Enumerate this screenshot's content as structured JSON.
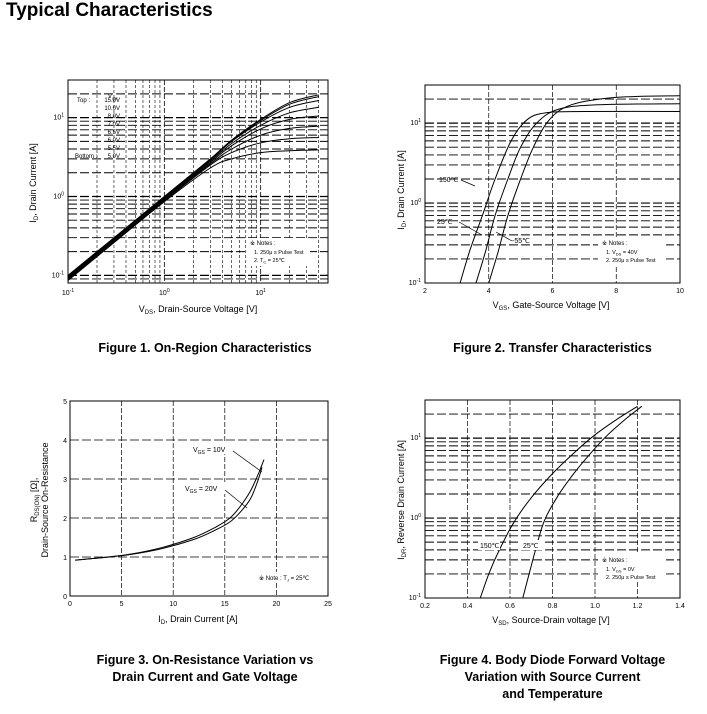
{
  "page_title": "Typical Characteristics",
  "chart_data": [
    {
      "type": "line",
      "id": "fig1",
      "scale": "log-log",
      "caption": "Figure 1. On-Region Characteristics",
      "xlabel": "V_DS, Drain-Source Voltage [V]",
      "xlabel_main": "V",
      "xlabel_sub": "DS",
      "xlabel_rest": ", Drain-Source Voltage [V]",
      "ylabel": "I_D, Drain Current [A]",
      "ylabel_main": "I",
      "ylabel_sub": "D",
      "ylabel_rest": ", Drain Current [A]",
      "xlim": [
        0.1,
        50
      ],
      "ylim": [
        0.08,
        30
      ],
      "x_ticks": [
        {
          "v": 0.1,
          "base": "10",
          "exp": "-1"
        },
        {
          "v": 1,
          "base": "10",
          "exp": "0"
        },
        {
          "v": 10,
          "base": "10",
          "exp": "1"
        }
      ],
      "y_ticks": [
        {
          "v": 0.1,
          "base": "10",
          "exp": "-1"
        },
        {
          "v": 1,
          "base": "10",
          "exp": "0"
        },
        {
          "v": 10,
          "base": "10",
          "exp": "1"
        }
      ],
      "legend_header": "V",
      "legend_header_sub": "GS",
      "legend_top_label": "Top :",
      "legend_bottom_label": "Bottom :",
      "legend_items": [
        "15.0V",
        "10.0V",
        "8.0V",
        "7.0V",
        "6.5V",
        "6.0V",
        "5.5V",
        "5.0V"
      ],
      "notes": [
        "※ Notes :",
        "1. 250μ s Pulse Test",
        "2. T = 25℃"
      ],
      "note_sub": "C",
      "series": [
        {
          "name": "15.0V",
          "x": [
            0.1,
            0.3,
            1,
            3,
            5,
            10,
            20,
            40
          ],
          "y": [
            0.1,
            0.3,
            1,
            3,
            5.2,
            9.5,
            15.5,
            19.5
          ]
        },
        {
          "name": "10.0V",
          "x": [
            0.1,
            0.3,
            1,
            3,
            5,
            10,
            20,
            40
          ],
          "y": [
            0.098,
            0.295,
            0.98,
            2.95,
            5.1,
            9.2,
            14.8,
            18.5
          ]
        },
        {
          "name": "8.0V",
          "x": [
            0.1,
            0.3,
            1,
            3,
            5,
            10,
            20,
            40
          ],
          "y": [
            0.096,
            0.29,
            0.96,
            2.9,
            5.0,
            8.8,
            13.5,
            16.5
          ]
        },
        {
          "name": "7.0V",
          "x": [
            0.1,
            0.3,
            1,
            3,
            5,
            10,
            20,
            40
          ],
          "y": [
            0.094,
            0.285,
            0.94,
            2.8,
            4.7,
            8.0,
            11.5,
            13.5
          ]
        },
        {
          "name": "6.5V",
          "x": [
            0.1,
            0.3,
            1,
            3,
            5,
            10,
            20,
            40
          ],
          "y": [
            0.092,
            0.28,
            0.92,
            2.7,
            4.4,
            7.2,
            9.5,
            10.5
          ]
        },
        {
          "name": "6.0V",
          "x": [
            0.1,
            0.3,
            1,
            3,
            5,
            10,
            20,
            40
          ],
          "y": [
            0.09,
            0.27,
            0.9,
            2.6,
            4.0,
            6.0,
            7.3,
            7.8
          ]
        },
        {
          "name": "5.5V",
          "x": [
            0.1,
            0.3,
            1,
            3,
            5,
            10,
            20,
            40
          ],
          "y": [
            0.088,
            0.265,
            0.88,
            2.5,
            3.6,
            4.8,
            5.4,
            5.6
          ]
        },
        {
          "name": "5.0V",
          "x": [
            0.1,
            0.3,
            1,
            3,
            5,
            10,
            20,
            40
          ],
          "y": [
            0.086,
            0.26,
            0.86,
            2.3,
            3.0,
            3.6,
            3.8,
            3.9
          ]
        }
      ]
    },
    {
      "type": "line",
      "id": "fig2",
      "scale": "lin-log",
      "caption": "Figure 2. Transfer Characteristics",
      "xlabel_main": "V",
      "xlabel_sub": "GS",
      "xlabel_rest": ", Gate-Source Voltage [V]",
      "ylabel_main": "I",
      "ylabel_sub": "D",
      "ylabel_rest": ", Drain Current [A]",
      "xlim": [
        2,
        10
      ],
      "ylim": [
        0.1,
        30
      ],
      "x_ticks": [
        {
          "v": 2,
          "label": "2"
        },
        {
          "v": 4,
          "label": "4"
        },
        {
          "v": 6,
          "label": "6"
        },
        {
          "v": 8,
          "label": "8"
        },
        {
          "v": 10,
          "label": "10"
        }
      ],
      "y_ticks": [
        {
          "v": 0.1,
          "base": "10",
          "exp": "-1"
        },
        {
          "v": 1,
          "base": "10",
          "exp": "0"
        },
        {
          "v": 10,
          "base": "10",
          "exp": "1"
        }
      ],
      "curve_labels": [
        "150℃",
        "25℃",
        "-55℃"
      ],
      "notes": [
        "※ Notes :",
        "1. V = 40V",
        "2. 250μ s Pulse Test"
      ],
      "note_sub": "DS",
      "series": [
        {
          "name": "150℃",
          "x": [
            3.1,
            3.4,
            3.8,
            4.2,
            4.7,
            5.2,
            5.8,
            7,
            10
          ],
          "y": [
            0.1,
            0.25,
            0.7,
            2,
            6,
            11,
            13.5,
            14,
            14
          ]
        },
        {
          "name": "25℃",
          "x": [
            3.6,
            3.9,
            4.2,
            4.6,
            5.0,
            5.5,
            6.2,
            7.5,
            10
          ],
          "y": [
            0.1,
            0.25,
            0.7,
            2,
            5,
            10,
            15,
            17,
            17.5
          ]
        },
        {
          "name": "-55℃",
          "x": [
            4.0,
            4.3,
            4.6,
            5.0,
            5.4,
            5.9,
            6.6,
            8,
            10
          ],
          "y": [
            0.1,
            0.25,
            0.7,
            2,
            5,
            11,
            17,
            21,
            22
          ]
        }
      ]
    },
    {
      "type": "line",
      "id": "fig3",
      "scale": "lin-lin",
      "caption_lines": [
        "Figure 3. On-Resistance Variation  vs",
        "Drain Current and Gate Voltage"
      ],
      "xlabel_main": "I",
      "xlabel_sub": "D",
      "xlabel_rest": ", Drain Current [A]",
      "ylabel_line1_main": "R",
      "ylabel_line1_sub": "DS(ON)",
      "ylabel_line1_rest": " [Ω],",
      "ylabel_line2": "Drain-Source On-Resistance",
      "xlim": [
        0,
        25
      ],
      "ylim": [
        0,
        5
      ],
      "x_ticks": [
        {
          "v": 0,
          "label": "0"
        },
        {
          "v": 5,
          "label": "5"
        },
        {
          "v": 10,
          "label": "10"
        },
        {
          "v": 15,
          "label": "15"
        },
        {
          "v": 20,
          "label": "20"
        },
        {
          "v": 25,
          "label": "25"
        }
      ],
      "y_ticks": [
        {
          "v": 0,
          "label": "0"
        },
        {
          "v": 1,
          "label": "1"
        },
        {
          "v": 2,
          "label": "2"
        },
        {
          "v": 3,
          "label": "3"
        },
        {
          "v": 4,
          "label": "4"
        },
        {
          "v": 5,
          "label": "5"
        }
      ],
      "curve_labels": [
        {
          "main": "V",
          "sub": "GS",
          "rest": " = 10V"
        },
        {
          "main": "V",
          "sub": "GS",
          "rest": " = 20V"
        }
      ],
      "notes": [
        "※ Note : T = 25℃"
      ],
      "note_sub": "J",
      "series": [
        {
          "name": "10V",
          "x": [
            0.5,
            3,
            6,
            9,
            12,
            14,
            15.5,
            16.5,
            17.5,
            18.2,
            18.8
          ],
          "y": [
            0.92,
            0.98,
            1.08,
            1.25,
            1.5,
            1.75,
            2.0,
            2.3,
            2.7,
            3.1,
            3.5
          ]
        },
        {
          "name": "20V",
          "x": [
            0.5,
            3,
            6,
            9,
            12,
            14,
            15.5,
            16.5,
            17.5,
            18.2,
            18.6
          ],
          "y": [
            0.92,
            0.98,
            1.07,
            1.22,
            1.45,
            1.68,
            1.9,
            2.15,
            2.5,
            2.95,
            3.3
          ]
        }
      ]
    },
    {
      "type": "line",
      "id": "fig4",
      "scale": "lin-log",
      "caption_lines": [
        "Figure 4. Body Diode Forward Voltage",
        "Variation with Source Current",
        "and Temperature"
      ],
      "xlabel_main": "V",
      "xlabel_sub": "SD",
      "xlabel_rest": ", Source-Drain voltage [V]",
      "ylabel_main": "I",
      "ylabel_sub": "DR",
      "ylabel_rest": ", Reverse Drain Current [A]",
      "xlim": [
        0.2,
        1.4
      ],
      "ylim": [
        0.1,
        30
      ],
      "x_ticks": [
        {
          "v": 0.2,
          "label": "0.2"
        },
        {
          "v": 0.4,
          "label": "0.4"
        },
        {
          "v": 0.6,
          "label": "0.6"
        },
        {
          "v": 0.8,
          "label": "0.8"
        },
        {
          "v": 1.0,
          "label": "1.0"
        },
        {
          "v": 1.2,
          "label": "1.2"
        },
        {
          "v": 1.4,
          "label": "1.4"
        }
      ],
      "y_ticks": [
        {
          "v": 0.1,
          "base": "10",
          "exp": "-1"
        },
        {
          "v": 1,
          "base": "10",
          "exp": "0"
        },
        {
          "v": 10,
          "base": "10",
          "exp": "1"
        }
      ],
      "curve_labels": [
        "150℃",
        "25℃"
      ],
      "notes": [
        "※ Notes :",
        "1. V = 0V",
        "2. 250μ s Pulse Test"
      ],
      "note_sub": "GS",
      "series": [
        {
          "name": "150℃",
          "x": [
            0.46,
            0.5,
            0.55,
            0.62,
            0.7,
            0.8,
            0.9,
            1.0,
            1.1,
            1.2
          ],
          "y": [
            0.1,
            0.2,
            0.4,
            0.9,
            1.8,
            3.6,
            6.5,
            11,
            17,
            25
          ]
        },
        {
          "name": "25℃",
          "x": [
            0.66,
            0.69,
            0.72,
            0.76,
            0.82,
            0.9,
            0.98,
            1.06,
            1.14,
            1.22
          ],
          "y": [
            0.1,
            0.2,
            0.4,
            0.9,
            1.8,
            3.6,
            6.5,
            11,
            17,
            25
          ]
        }
      ]
    }
  ]
}
